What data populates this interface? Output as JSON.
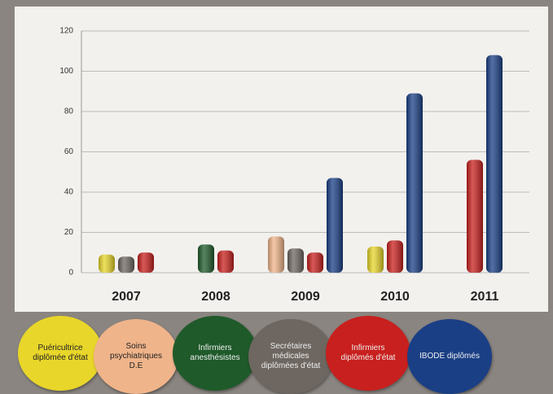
{
  "chart_data": {
    "type": "bar",
    "categories": [
      "2007",
      "2008",
      "2009",
      "2010",
      "2011"
    ],
    "series": [
      {
        "name": "Puéricultrice diplômée d'état",
        "color": "#e8d62a",
        "values": [
          9,
          null,
          null,
          13,
          null
        ]
      },
      {
        "name": "Soins psychiatriques D.E",
        "color": "#f0b48a",
        "values": [
          null,
          null,
          18,
          null,
          null
        ]
      },
      {
        "name": "Infirmiers anesthésistes",
        "color": "#1f5a2a",
        "values": [
          null,
          14,
          null,
          null,
          null
        ]
      },
      {
        "name": "Secrétaires médicales diplômées d'état",
        "color": "#6e6660",
        "values": [
          8,
          null,
          12,
          null,
          null
        ]
      },
      {
        "name": "Infirmiers diplômés d'état",
        "color": "#c8201e",
        "values": [
          10,
          11,
          10,
          16,
          56
        ]
      },
      {
        "name": "IBODE diplômés",
        "color": "#1a3f85",
        "values": [
          null,
          null,
          47,
          89,
          108
        ]
      }
    ],
    "ylim": [
      0,
      120
    ],
    "yticks": [
      0,
      20,
      40,
      60,
      80,
      100,
      120
    ],
    "grid": true
  }
}
